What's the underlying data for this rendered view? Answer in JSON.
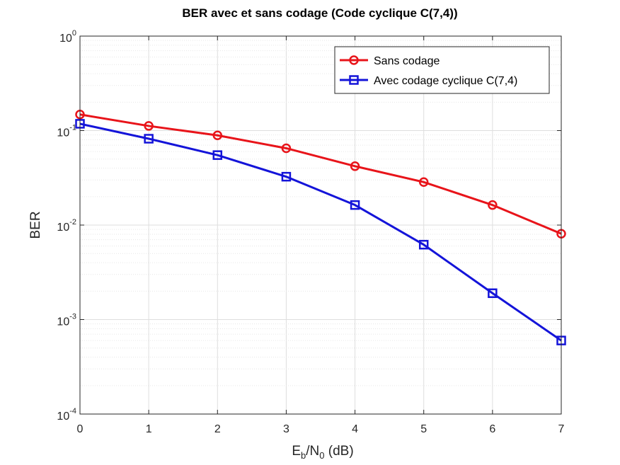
{
  "chart_data": {
    "type": "line",
    "title": "BER avec et sans codage (Code cyclique C(7,4))",
    "xlabel": "Eb/N0 (dB)",
    "ylabel": "BER",
    "xlim": [
      0,
      7
    ],
    "ylim": [
      0.0001,
      1
    ],
    "yscale": "log",
    "grid": true,
    "legend_position": "top-right",
    "x": [
      0,
      1,
      2,
      3,
      4,
      5,
      6,
      7
    ],
    "x_tick_labels": [
      "0",
      "1",
      "2",
      "3",
      "4",
      "5",
      "6",
      "7"
    ],
    "y_ticks": [
      {
        "base": "10",
        "exp": "0"
      },
      {
        "base": "10",
        "exp": "-1"
      },
      {
        "base": "10",
        "exp": "-2"
      },
      {
        "base": "10",
        "exp": "-3"
      },
      {
        "base": "10",
        "exp": "-4"
      }
    ],
    "series": [
      {
        "name": "Sans codage",
        "color": "#e8141a",
        "marker": "circle",
        "values": [
          0.148,
          0.112,
          0.089,
          0.065,
          0.042,
          0.0285,
          0.0163,
          0.0081
        ]
      },
      {
        "name": "Avec codage cyclique C(7,4)",
        "color": "#1414d9",
        "marker": "square",
        "values": [
          0.118,
          0.082,
          0.055,
          0.0325,
          0.0163,
          0.0062,
          0.0019,
          0.0006
        ]
      }
    ]
  }
}
